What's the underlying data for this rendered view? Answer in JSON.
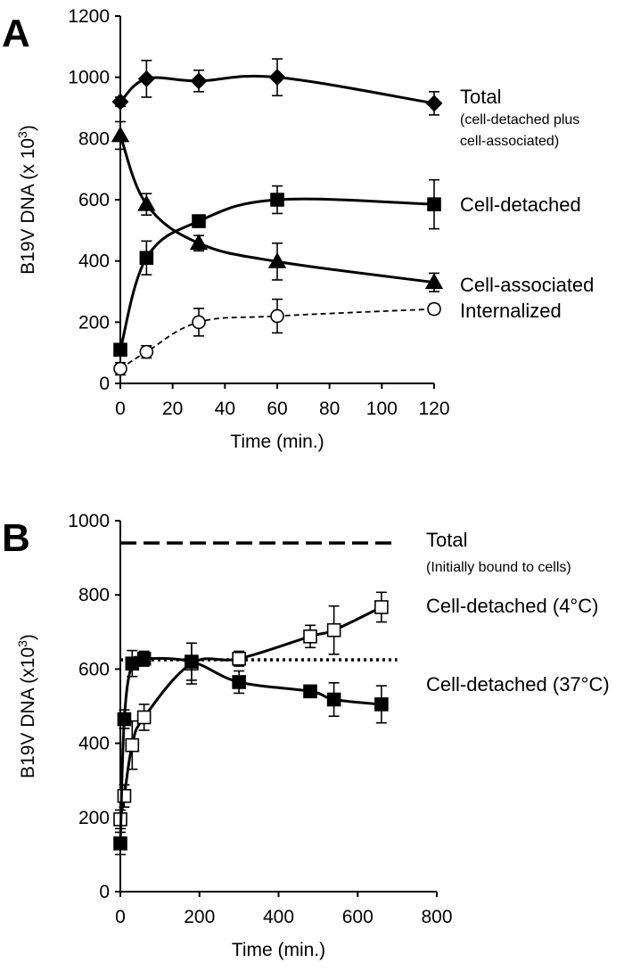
{
  "figure": "B19V DNA kinetics, panels A and B",
  "chart_data": [
    {
      "panel": "A",
      "type": "line",
      "xlabel": "Time (min.)",
      "ylabel": "B19V DNA (x 10",
      "ylabel_sup": "3",
      "ylabel_end": ")",
      "xlim": [
        0,
        120
      ],
      "ylim": [
        0,
        1200
      ],
      "xticks": [
        0,
        20,
        40,
        60,
        80,
        100,
        120
      ],
      "yticks": [
        0,
        200,
        400,
        600,
        800,
        1000,
        1200
      ],
      "series": [
        {
          "name": "Total",
          "subtitle": [
            "(cell-detached plus",
            "cell-associated)"
          ],
          "marker": "diamond",
          "fill": "#000000",
          "line": "solid",
          "x": [
            0,
            10,
            30,
            60,
            120
          ],
          "y": [
            920,
            995,
            988,
            1000,
            915
          ],
          "err": [
            15,
            60,
            35,
            60,
            38
          ]
        },
        {
          "name": "Cell-detached",
          "marker": "square",
          "fill": "#000000",
          "line": "solid",
          "x": [
            0,
            10,
            30,
            60,
            120
          ],
          "y": [
            110,
            410,
            530,
            600,
            585
          ],
          "err": [
            10,
            55,
            12,
            45,
            80
          ]
        },
        {
          "name": "Cell-associated",
          "marker": "triangle",
          "fill": "#000000",
          "line": "solid",
          "x": [
            0,
            10,
            30,
            60,
            120
          ],
          "y": [
            810,
            585,
            458,
            398,
            330
          ],
          "err": [
            45,
            35,
            25,
            60,
            30
          ]
        },
        {
          "name": "Internalized",
          "marker": "circle",
          "fill": "#ffffff",
          "line": "dashed",
          "x": [
            0,
            10,
            30,
            60,
            120
          ],
          "y": [
            48,
            103,
            200,
            220,
            243
          ],
          "err": [
            20,
            20,
            45,
            55,
            15
          ]
        }
      ]
    },
    {
      "panel": "B",
      "type": "line",
      "xlabel": "Time (min.)",
      "ylabel": "B19V DNA (x10",
      "ylabel_sup": "3",
      "ylabel_end": ")",
      "xlim": [
        0,
        800
      ],
      "ylim": [
        0,
        1000
      ],
      "xticks": [
        0,
        200,
        400,
        600,
        800
      ],
      "yticks": [
        0,
        200,
        400,
        600,
        800,
        1000
      ],
      "reference_lines": [
        {
          "name": "Total",
          "subtitle": "(Initially bound to cells)",
          "y": 940,
          "style": "dashed",
          "x": [
            0,
            700
          ]
        },
        {
          "name": "",
          "y": 625,
          "style": "dotted",
          "x": [
            0,
            700
          ]
        }
      ],
      "series": [
        {
          "name": "Cell-detached (4°C)",
          "marker": "square",
          "fill": "#ffffff",
          "line": "solid",
          "x": [
            0,
            10,
            30,
            60,
            180,
            300,
            480,
            540,
            660
          ],
          "y": [
            195,
            258,
            395,
            470,
            615,
            628,
            688,
            705,
            767
          ],
          "err": [
            25,
            30,
            65,
            35,
            55,
            20,
            30,
            65,
            40
          ]
        },
        {
          "name": "Cell-detached (37°C)",
          "marker": "square",
          "fill": "#000000",
          "line": "solid",
          "x": [
            0,
            10,
            30,
            60,
            180,
            300,
            480,
            540,
            660
          ],
          "y": [
            130,
            465,
            615,
            628,
            620,
            565,
            540,
            518,
            505
          ],
          "err": [
            30,
            25,
            35,
            20,
            50,
            30,
            15,
            45,
            50
          ]
        }
      ]
    }
  ]
}
